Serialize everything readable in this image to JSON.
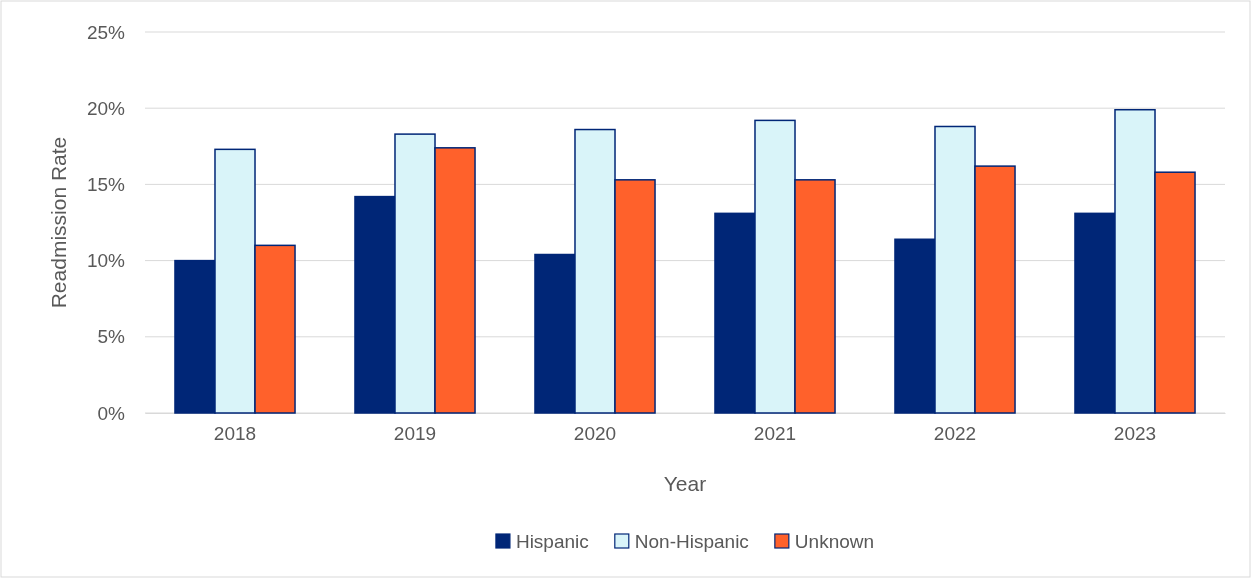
{
  "chart_data": {
    "type": "bar",
    "xlabel": "Year",
    "ylabel": "Readmission Rate",
    "categories": [
      "2018",
      "2019",
      "2020",
      "2021",
      "2022",
      "2023"
    ],
    "series": [
      {
        "name": "Hispanic",
        "color": "#002677",
        "values": [
          10.0,
          14.2,
          10.4,
          13.1,
          11.4,
          13.1
        ]
      },
      {
        "name": "Non-Hispanic",
        "color": "#d9f4f9",
        "values": [
          17.3,
          18.3,
          18.6,
          19.2,
          18.8,
          19.9
        ]
      },
      {
        "name": "Unknown",
        "color": "#ff612b",
        "values": [
          11.0,
          17.4,
          15.3,
          15.3,
          16.2,
          15.8
        ]
      }
    ],
    "ylim": [
      0,
      25
    ],
    "yticks": [
      {
        "value": 0,
        "label": "0%"
      },
      {
        "value": 5,
        "label": "5%"
      },
      {
        "value": 10,
        "label": "10%"
      },
      {
        "value": 15,
        "label": "15%"
      },
      {
        "value": 20,
        "label": "20%"
      },
      {
        "value": 25,
        "label": "25%"
      }
    ],
    "grid": "y",
    "legend": "bottom"
  }
}
